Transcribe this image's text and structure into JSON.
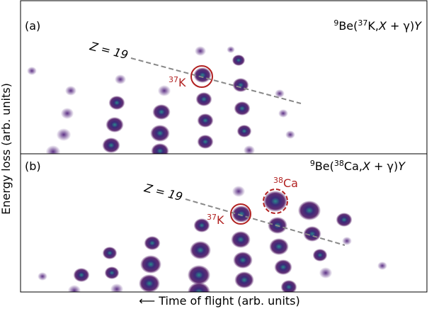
{
  "figure": {
    "y_label": "Energy loss (arb. units)",
    "x_label": "⟵ Time of flight (arb. units)",
    "panels": [
      {
        "tag": "(a)",
        "reaction": {
          "target_mass": "9",
          "target": "Be(",
          "beam_mass": "37",
          "beam": "K,",
          "x": "X",
          "mid": " + γ)",
          "y": "Y"
        },
        "line_label": "Z = 19",
        "markers": [
          {
            "mass": "37",
            "element": "K"
          }
        ]
      },
      {
        "tag": "(b)",
        "reaction": {
          "target_mass": "9",
          "target": "Be(",
          "beam_mass": "38",
          "beam": "Ca,",
          "x": "X",
          "mid": " + γ)",
          "y": "Y"
        },
        "line_label": "Z = 19",
        "markers": [
          {
            "mass": "37",
            "element": "K"
          },
          {
            "mass": "38",
            "element": "Ca"
          }
        ]
      }
    ]
  }
}
